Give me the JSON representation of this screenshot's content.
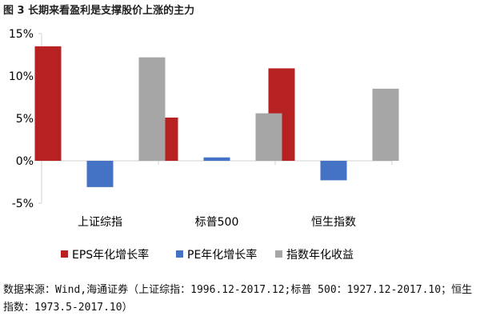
{
  "figure_title": "图 3 长期来看盈利是支撑股价上涨的主力",
  "source_note": "数据来源：Wind,海通证券（上证综指：1996.12-2017.12;标普 500：1927.12-2017.10；恒生指数：1973.5-2017.10）",
  "colors": {
    "eps": "#b72121",
    "pe": "#4472c4",
    "index": "#a6a6a6",
    "axis": "#d0d0d0"
  },
  "chart_data": {
    "type": "bar",
    "title": "",
    "xlabel": "",
    "ylabel": "",
    "categories": [
      "上证综指",
      "标普500",
      "恒生指数"
    ],
    "y_ticks": [
      "15%",
      "10%",
      "5%",
      "0%",
      "-5%"
    ],
    "ylim": [
      -5,
      15
    ],
    "unit": "%",
    "grid": false,
    "legend_position": "bottom",
    "series": [
      {
        "name": "EPS年化增长率",
        "color_key": "eps",
        "values": [
          13.5,
          5.1,
          10.9
        ]
      },
      {
        "name": "PE年化增长率",
        "color_key": "pe",
        "values": [
          -3.1,
          0.4,
          -2.3
        ]
      },
      {
        "name": "指数年化收益",
        "color_key": "index",
        "values": [
          12.2,
          5.6,
          8.5
        ]
      }
    ]
  }
}
